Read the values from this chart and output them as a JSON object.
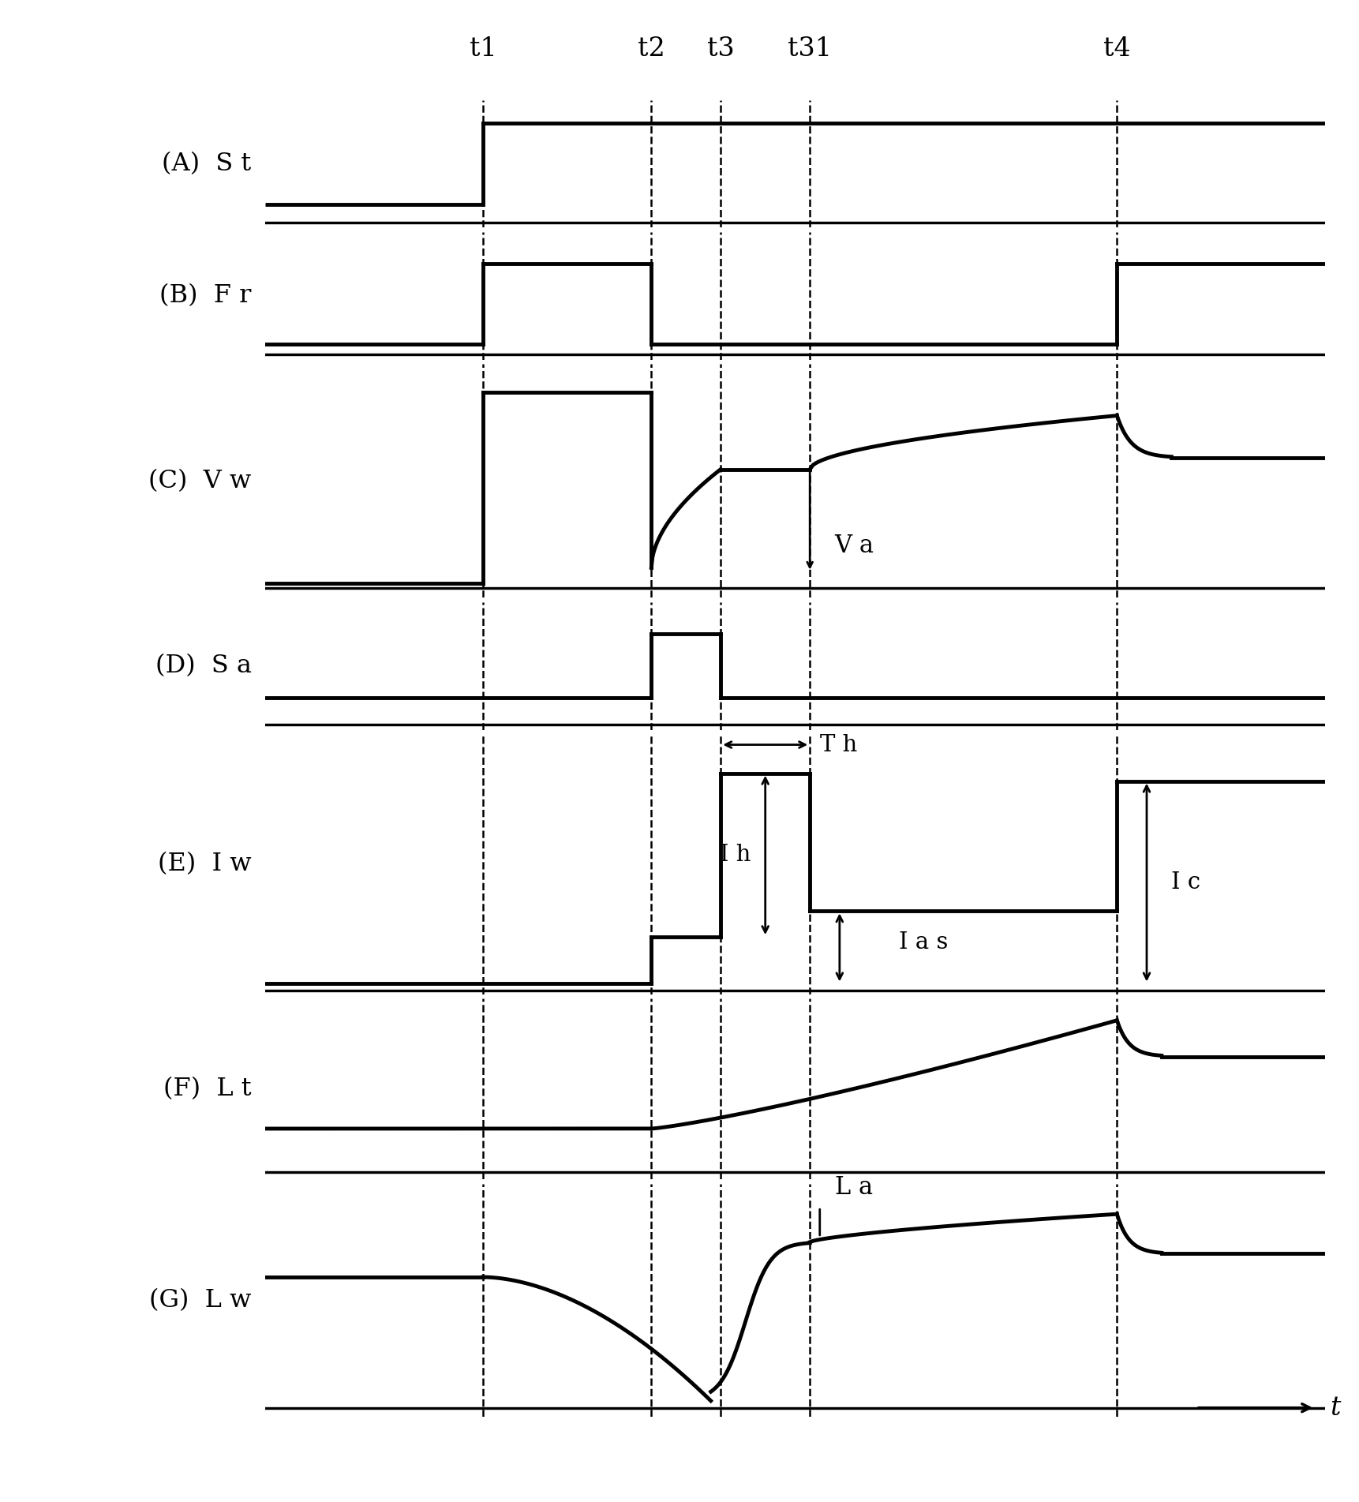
{
  "t1": 0.2,
  "t2": 0.37,
  "t3": 0.44,
  "t31": 0.53,
  "t4": 0.84,
  "tend": 1.05,
  "tstart": -0.02,
  "panel_labels": [
    "(A)  S t",
    "(B)  F r",
    "(C)  V w",
    "(D)  S a",
    "(E)  I w",
    "(F)  L t",
    "(G)  L w"
  ],
  "vline_labels": [
    "t1",
    "t2",
    "t3",
    "t31",
    "t4"
  ],
  "background_color": "#ffffff",
  "line_color": "#000000",
  "lw": 3.5,
  "dashed_lw": 1.8,
  "heights": [
    1.0,
    1.0,
    1.8,
    1.0,
    2.0,
    1.4,
    1.8
  ]
}
